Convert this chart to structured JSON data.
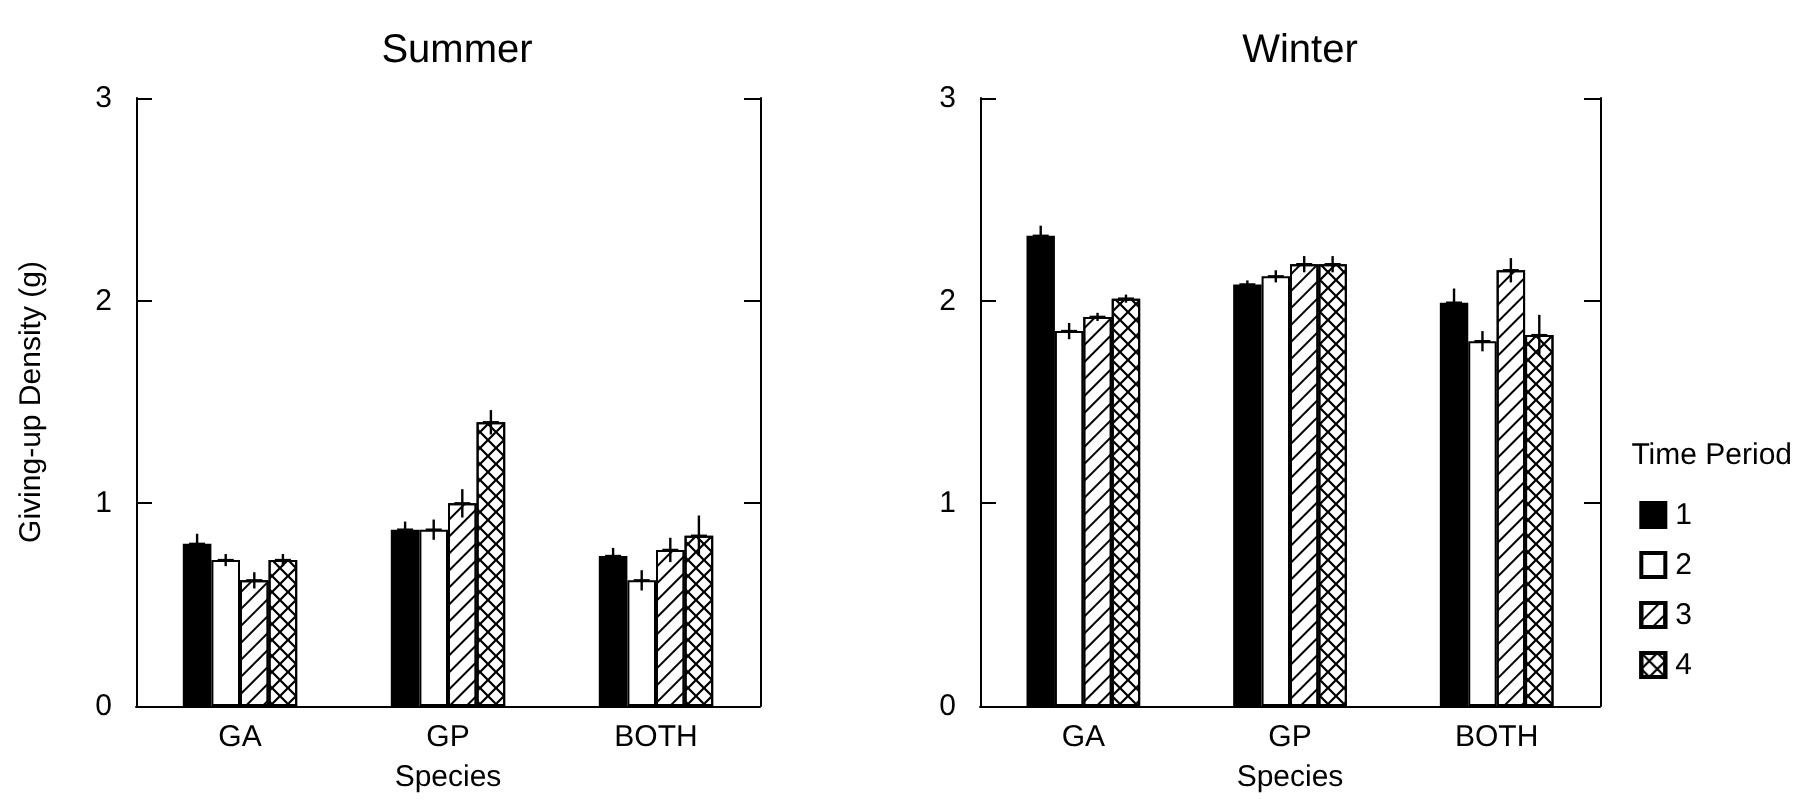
{
  "chart_data": [
    {
      "type": "bar",
      "title": "Summer",
      "xlabel": "Species",
      "ylabel": "Giving-up Density (g)",
      "categories": [
        "GA",
        "GP",
        "BOTH"
      ],
      "ylim": [
        0,
        3
      ],
      "yticks": [
        0,
        1,
        2,
        3
      ],
      "grid": false,
      "legend": false,
      "series": [
        {
          "color": "#000000",
          "values": [
            0.8,
            0.87,
            0.74
          ],
          "errors": [
            0.05,
            0.04,
            0.04
          ]
        },
        {
          "color": "#ffffff",
          "values": [
            0.72,
            0.87,
            0.62
          ],
          "errors": [
            0.03,
            0.05,
            0.05
          ]
        },
        {
          "color": "#ffffff",
          "values": [
            0.62,
            1.0,
            0.77
          ],
          "errors": [
            0.04,
            0.07,
            0.06
          ]
        },
        {
          "color": "#ffffff",
          "values": [
            0.72,
            1.4,
            0.84
          ],
          "errors": [
            0.03,
            0.06,
            0.1
          ]
        }
      ]
    },
    {
      "type": "bar",
      "title": "Winter",
      "xlabel": "Species",
      "categories": [
        "GA",
        "GP",
        "BOTH"
      ],
      "ylim": [
        0,
        3
      ],
      "yticks": [
        0,
        1,
        2,
        3
      ],
      "grid": false,
      "legend": "right",
      "legend_title": "Time Period",
      "series": [
        {
          "name": "1",
          "color": "#000000",
          "values": [
            2.32,
            2.08,
            1.99
          ],
          "errors": [
            0.05,
            0.02,
            0.07
          ]
        },
        {
          "name": "2",
          "color": "#ffffff",
          "values": [
            1.85,
            2.12,
            1.8
          ],
          "errors": [
            0.04,
            0.03,
            0.05
          ]
        },
        {
          "name": "3",
          "color": "#ffffff",
          "values": [
            1.92,
            2.18,
            2.15
          ],
          "errors": [
            0.02,
            0.04,
            0.06
          ]
        },
        {
          "name": "4",
          "color": "#ffffff",
          "values": [
            2.01,
            2.18,
            1.83
          ],
          "errors": [
            0.02,
            0.04,
            0.1
          ]
        }
      ]
    }
  ]
}
